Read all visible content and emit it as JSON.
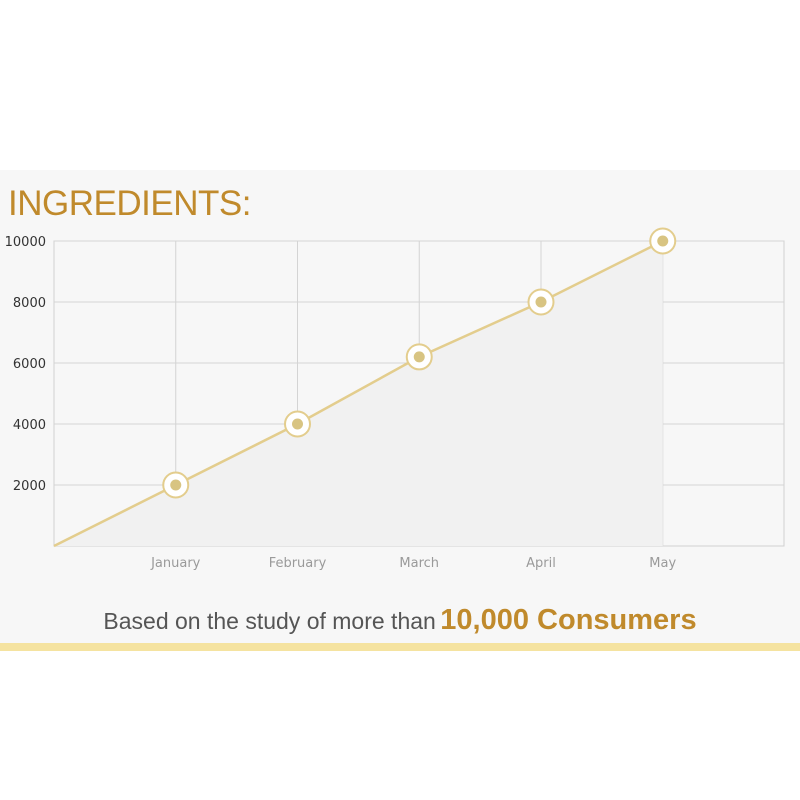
{
  "header": {
    "title": "INGREDIENTS:"
  },
  "chart_data": {
    "type": "line",
    "categories": [
      "January",
      "February",
      "March",
      "April",
      "May"
    ],
    "x": [
      "January",
      "February",
      "March",
      "April",
      "May"
    ],
    "series": [
      {
        "values": [
          2000,
          4000,
          6200,
          8000,
          10000
        ]
      }
    ],
    "y_ticks": [
      "2000",
      "4000",
      "6000",
      "8000",
      "10000"
    ],
    "ylim": [
      0,
      10000
    ],
    "grid": true,
    "title": "",
    "xlabel": "",
    "ylabel": "",
    "colors": {
      "line": "#e3cd8d",
      "marker": "#d8c482",
      "area": "#f1f1f1"
    }
  },
  "footer": {
    "lead": "Based on the study of more than",
    "highlight": "10,000 Consumers"
  },
  "colors": {
    "accent": "#c08a2c",
    "bar": "#f5e3a0",
    "panel": "#f7f7f7"
  }
}
